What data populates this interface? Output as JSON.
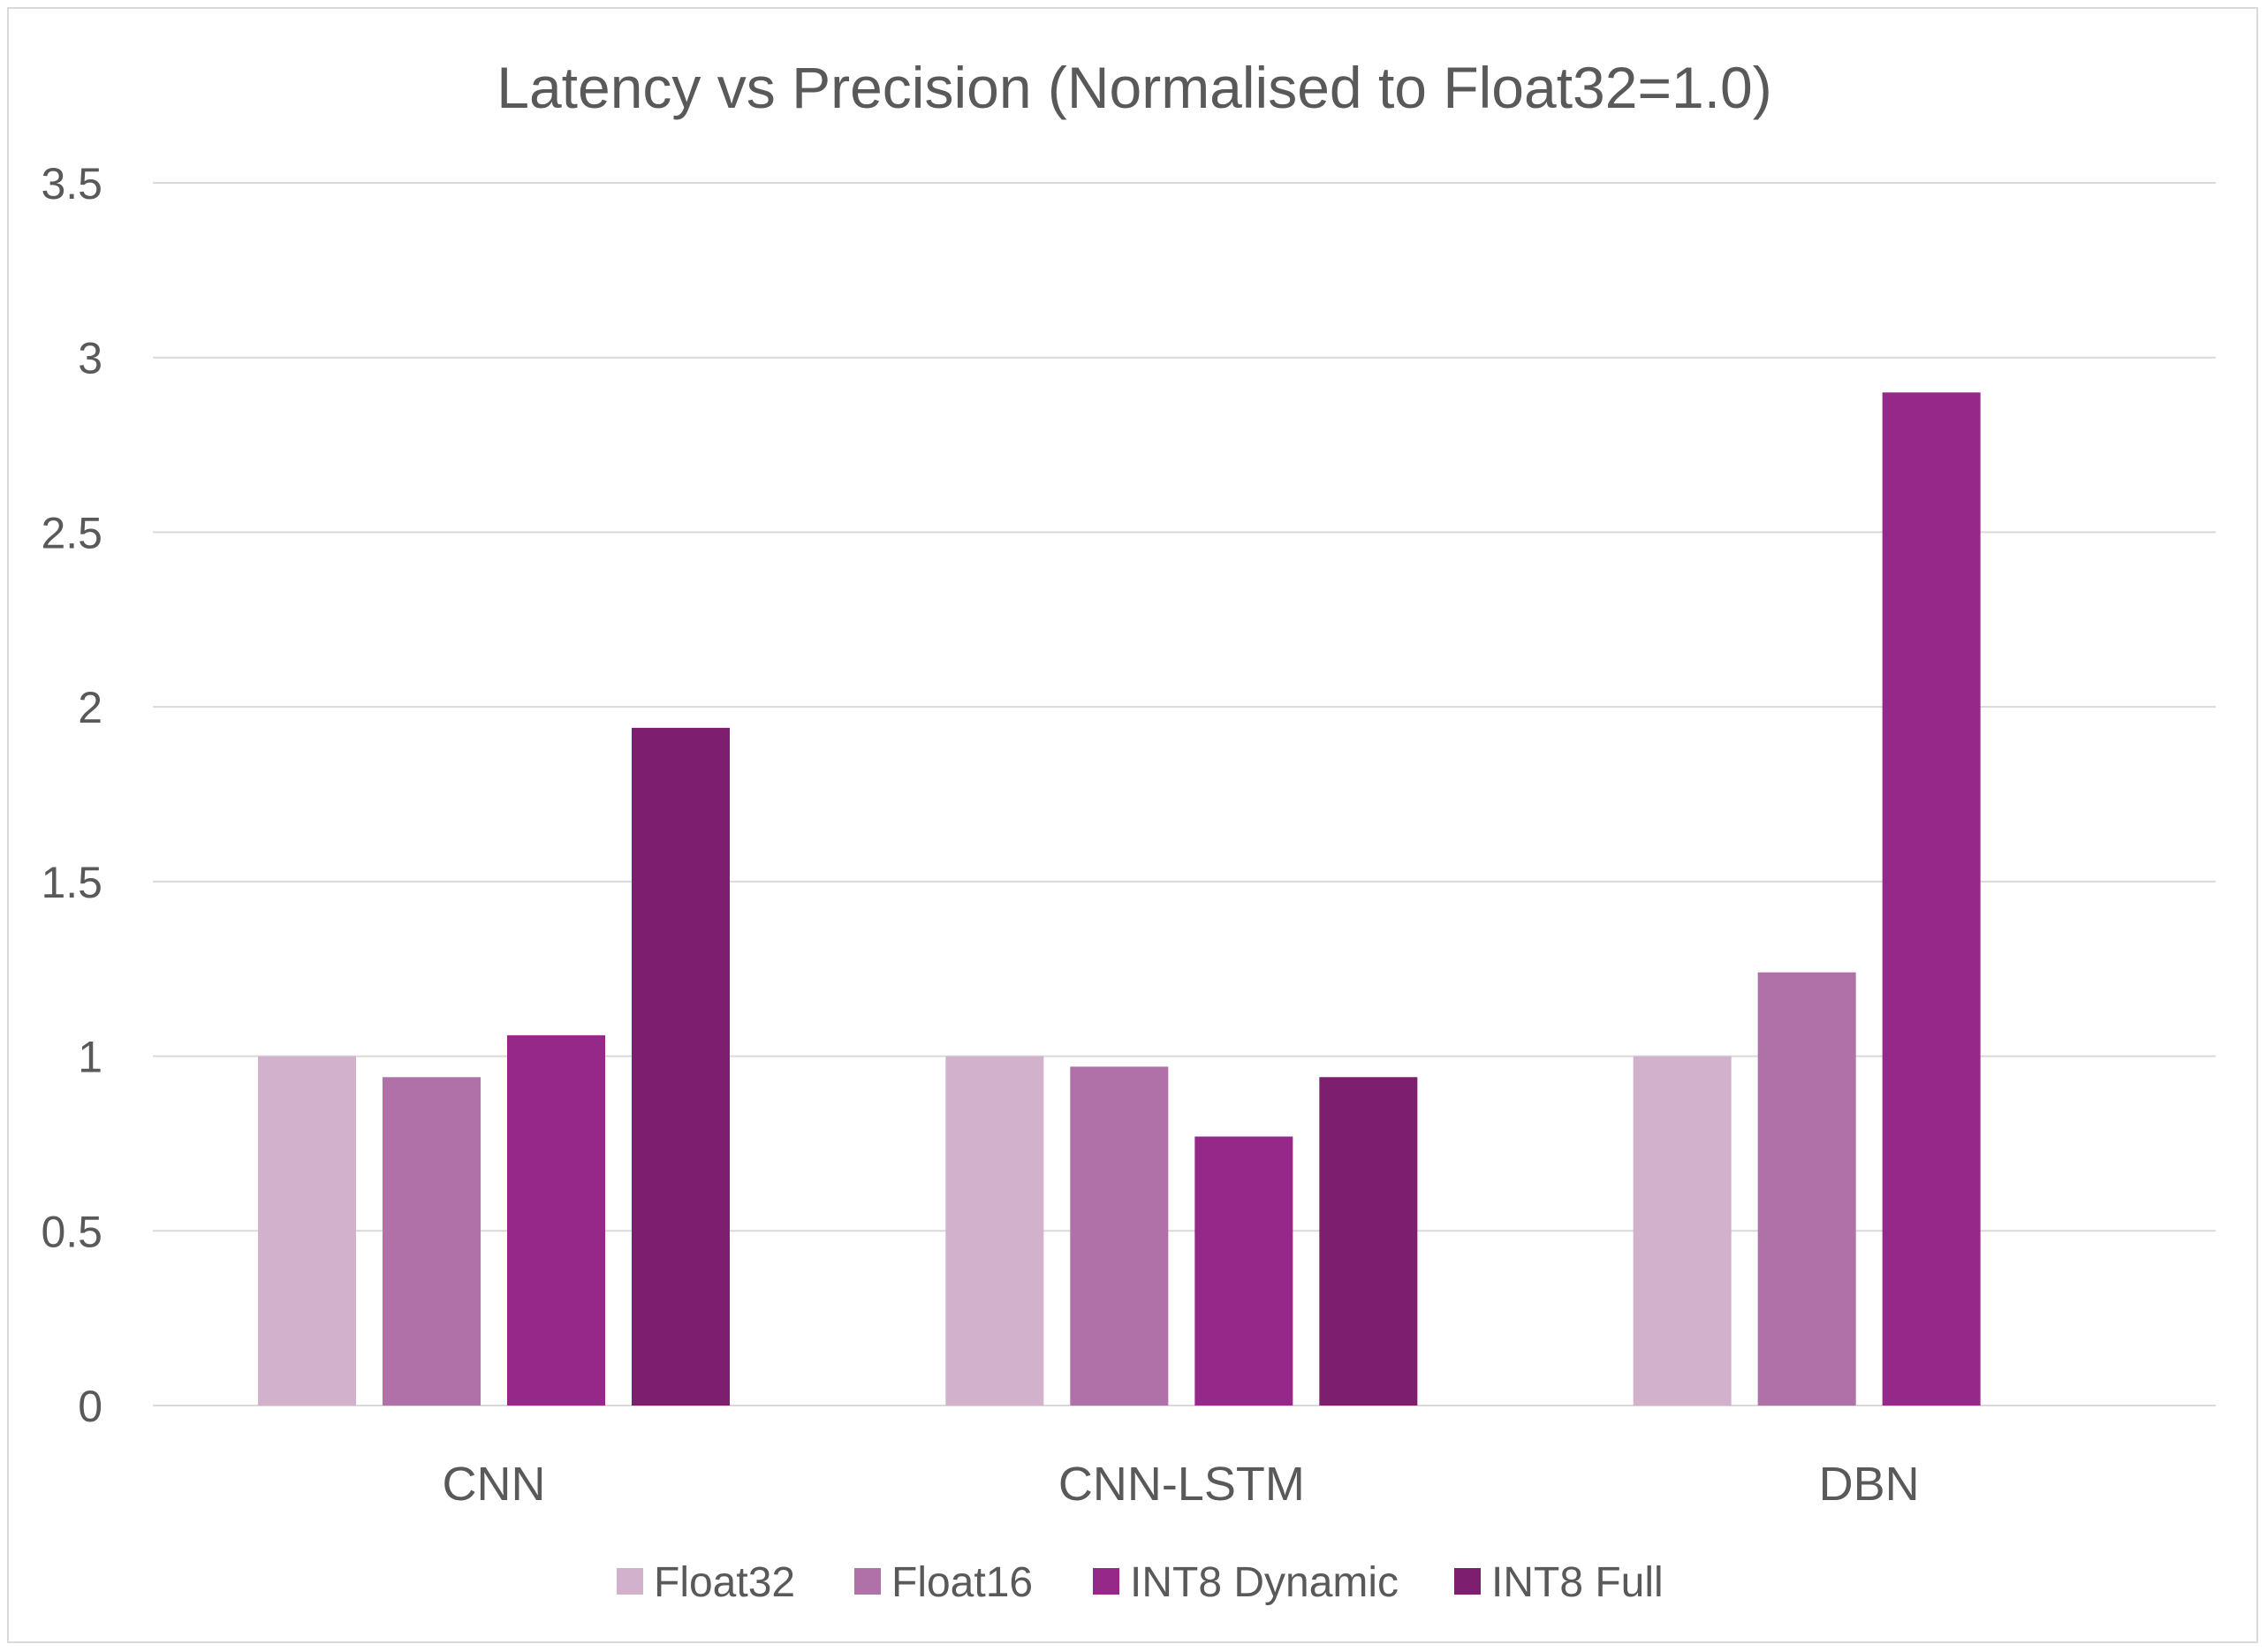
{
  "chart_data": {
    "type": "bar",
    "title": "Latency vs Precision (Normalised to Float32=1.0)",
    "xlabel": "",
    "ylabel": "",
    "categories": [
      "CNN",
      "CNN-LSTM",
      "DBN"
    ],
    "series": [
      {
        "name": "Float32",
        "color": "#d1b1cc",
        "values": [
          1.0,
          1.0,
          1.0
        ]
      },
      {
        "name": "Float16",
        "color": "#b070a8",
        "values": [
          0.94,
          0.97,
          1.24
        ]
      },
      {
        "name": "INT8 Dynamic",
        "color": "#952888",
        "values": [
          1.06,
          0.77,
          2.9
        ]
      },
      {
        "name": "INT8 Full",
        "color": "#7d1e6e",
        "values": [
          1.94,
          0.94,
          null
        ]
      }
    ],
    "ylim": [
      0,
      3.5
    ],
    "yticks": [
      "0",
      "0.5",
      "1",
      "1.5",
      "2",
      "2.5",
      "3",
      "3.5"
    ],
    "grid": true,
    "legend_position": "bottom"
  }
}
